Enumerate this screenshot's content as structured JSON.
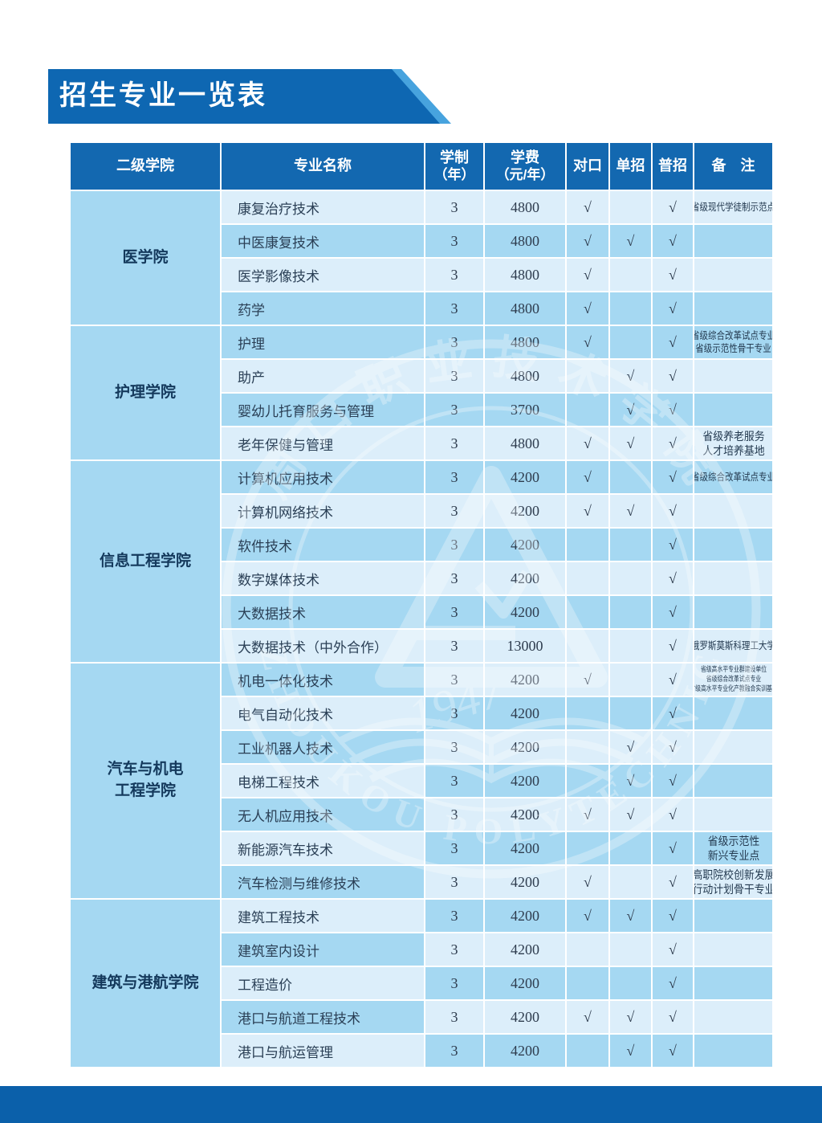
{
  "page": {
    "title": "招生专业一览表"
  },
  "colors": {
    "banner_blue": "#0e67b2",
    "banner_accent": "#47a3de",
    "header_blue": "#1368b0",
    "row_light": "#dceefa",
    "row_medium": "#a5d8f2",
    "footer_blue": "#0b60aa",
    "text_dark": "#2a3f55"
  },
  "table": {
    "headers": {
      "college": "二级学院",
      "major": "专业名称",
      "duration_line1": "学制",
      "duration_line2": "（年）",
      "tuition_line1": "学费",
      "tuition_line2": "（元/年）",
      "duikou": "对口",
      "danzhao": "单招",
      "puzhao": "普招",
      "remark": "备　注"
    },
    "check_symbol": "√",
    "groups": [
      {
        "college_lines": [
          "医学院"
        ],
        "majors": [
          {
            "name": "康复治疗技术",
            "duration": "3",
            "tuition": "4800",
            "duikou": true,
            "danzhao": false,
            "puzhao": true,
            "remark": [
              "省级现代学徒制示范点"
            ],
            "remark_size": "sm",
            "shade_name": "L",
            "shade_data": "L"
          },
          {
            "name": "中医康复技术",
            "duration": "3",
            "tuition": "4800",
            "duikou": true,
            "danzhao": true,
            "puzhao": true,
            "remark": [],
            "remark_size": "sm",
            "shade_name": "M",
            "shade_data": "M"
          },
          {
            "name": "医学影像技术",
            "duration": "3",
            "tuition": "4800",
            "duikou": true,
            "danzhao": false,
            "puzhao": true,
            "remark": [],
            "remark_size": "sm",
            "shade_name": "L",
            "shade_data": "L"
          },
          {
            "name": "药学",
            "duration": "3",
            "tuition": "4800",
            "duikou": true,
            "danzhao": false,
            "puzhao": true,
            "remark": [],
            "remark_size": "sm",
            "shade_name": "M",
            "shade_data": "M"
          }
        ]
      },
      {
        "college_lines": [
          "护理学院"
        ],
        "majors": [
          {
            "name": "护理",
            "duration": "3",
            "tuition": "4800",
            "duikou": true,
            "danzhao": false,
            "puzhao": true,
            "remark": [
              "省级综合改革试点专业",
              "省级示范性骨干专业"
            ],
            "remark_size": "sm",
            "shade_name": "M",
            "shade_data": "M"
          },
          {
            "name": "助产",
            "duration": "3",
            "tuition": "4800",
            "duikou": false,
            "danzhao": true,
            "puzhao": true,
            "remark": [],
            "remark_size": "sm",
            "shade_name": "L",
            "shade_data": "L"
          },
          {
            "name": "婴幼儿托育服务与管理",
            "duration": "3",
            "tuition": "3700",
            "duikou": false,
            "danzhao": true,
            "puzhao": true,
            "remark": [],
            "remark_size": "sm",
            "shade_name": "M",
            "shade_data": "M"
          },
          {
            "name": "老年保健与管理",
            "duration": "3",
            "tuition": "4800",
            "duikou": true,
            "danzhao": true,
            "puzhao": true,
            "remark": [
              "省级养老服务",
              "人才培养基地"
            ],
            "remark_size": "md",
            "shade_name": "L",
            "shade_data": "L"
          }
        ]
      },
      {
        "college_lines": [
          "信息工程学院"
        ],
        "majors": [
          {
            "name": "计算机应用技术",
            "duration": "3",
            "tuition": "4200",
            "duikou": true,
            "danzhao": false,
            "puzhao": true,
            "remark": [
              "省级综合改革试点专业"
            ],
            "remark_size": "sm",
            "shade_name": "M",
            "shade_data": "M"
          },
          {
            "name": "计算机网络技术",
            "duration": "3",
            "tuition": "4200",
            "duikou": true,
            "danzhao": true,
            "puzhao": true,
            "remark": [],
            "remark_size": "sm",
            "shade_name": "L",
            "shade_data": "L"
          },
          {
            "name": "软件技术",
            "duration": "3",
            "tuition": "4200",
            "duikou": false,
            "danzhao": false,
            "puzhao": true,
            "remark": [],
            "remark_size": "sm",
            "shade_name": "M",
            "shade_data": "M"
          },
          {
            "name": "数字媒体技术",
            "duration": "3",
            "tuition": "4200",
            "duikou": false,
            "danzhao": false,
            "puzhao": true,
            "remark": [],
            "remark_size": "sm",
            "shade_name": "L",
            "shade_data": "L"
          },
          {
            "name": "大数据技术",
            "duration": "3",
            "tuition": "4200",
            "duikou": false,
            "danzhao": false,
            "puzhao": true,
            "remark": [],
            "remark_size": "sm",
            "shade_name": "M",
            "shade_data": "M"
          },
          {
            "name": "大数据技术（中外合作）",
            "duration": "3",
            "tuition": "13000",
            "duikou": false,
            "danzhao": false,
            "puzhao": true,
            "remark": [
              "俄罗斯莫斯科理工大学"
            ],
            "remark_size": "sm",
            "shade_name": "L",
            "shade_data": "L"
          }
        ]
      },
      {
        "college_lines": [
          "汽车与机电",
          "工程学院"
        ],
        "majors": [
          {
            "name": "机电一体化技术",
            "duration": "3",
            "tuition": "4200",
            "duikou": true,
            "danzhao": false,
            "puzhao": true,
            "remark": [
              "省级高水平专业群建设单位",
              "省级综合改革试点专业",
              "省级高水平专业化产教融合实训基地"
            ],
            "remark_size": "xs",
            "shade_name": "M",
            "shade_data": "L"
          },
          {
            "name": "电气自动化技术",
            "duration": "3",
            "tuition": "4200",
            "duikou": false,
            "danzhao": false,
            "puzhao": true,
            "remark": [],
            "remark_size": "sm",
            "shade_name": "L",
            "shade_data": "M"
          },
          {
            "name": "工业机器人技术",
            "duration": "3",
            "tuition": "4200",
            "duikou": false,
            "danzhao": true,
            "puzhao": true,
            "remark": [],
            "remark_size": "sm",
            "shade_name": "M",
            "shade_data": "L"
          },
          {
            "name": "电梯工程技术",
            "duration": "3",
            "tuition": "4200",
            "duikou": false,
            "danzhao": true,
            "puzhao": true,
            "remark": [],
            "remark_size": "sm",
            "shade_name": "L",
            "shade_data": "M"
          },
          {
            "name": "无人机应用技术",
            "duration": "3",
            "tuition": "4200",
            "duikou": true,
            "danzhao": true,
            "puzhao": true,
            "remark": [],
            "remark_size": "sm",
            "shade_name": "M",
            "shade_data": "L"
          },
          {
            "name": "新能源汽车技术",
            "duration": "3",
            "tuition": "4200",
            "duikou": false,
            "danzhao": false,
            "puzhao": true,
            "remark": [
              "省级示范性",
              "新兴专业点"
            ],
            "remark_size": "md",
            "shade_name": "L",
            "shade_data": "M"
          },
          {
            "name": "汽车检测与维修技术",
            "duration": "3",
            "tuition": "4200",
            "duikou": true,
            "danzhao": false,
            "puzhao": true,
            "remark": [
              "高职院校创新发展",
              "行动计划骨干专业"
            ],
            "remark_size": "md",
            "shade_name": "M",
            "shade_data": "L"
          }
        ]
      },
      {
        "college_lines": [
          "建筑与港航学院"
        ],
        "majors": [
          {
            "name": "建筑工程技术",
            "duration": "3",
            "tuition": "4200",
            "duikou": true,
            "danzhao": true,
            "puzhao": true,
            "remark": [],
            "remark_size": "sm",
            "shade_name": "L",
            "shade_data": "M"
          },
          {
            "name": "建筑室内设计",
            "duration": "3",
            "tuition": "4200",
            "duikou": false,
            "danzhao": false,
            "puzhao": true,
            "remark": [],
            "remark_size": "sm",
            "shade_name": "M",
            "shade_data": "L"
          },
          {
            "name": "工程造价",
            "duration": "3",
            "tuition": "4200",
            "duikou": false,
            "danzhao": false,
            "puzhao": true,
            "remark": [],
            "remark_size": "sm",
            "shade_name": "L",
            "shade_data": "M"
          },
          {
            "name": "港口与航道工程技术",
            "duration": "3",
            "tuition": "4200",
            "duikou": true,
            "danzhao": true,
            "puzhao": true,
            "remark": [],
            "remark_size": "sm",
            "shade_name": "M",
            "shade_data": "L"
          },
          {
            "name": "港口与航运管理",
            "duration": "3",
            "tuition": "4200",
            "duikou": false,
            "danzhao": true,
            "puzhao": true,
            "remark": [],
            "remark_size": "sm",
            "shade_name": "L",
            "shade_data": "M"
          }
        ]
      }
    ]
  },
  "watermark": {
    "arc_top": "周口职业技术学院",
    "arc_bottom": "ZHOUKOU  POLYTECHNIC",
    "year": "1947"
  }
}
